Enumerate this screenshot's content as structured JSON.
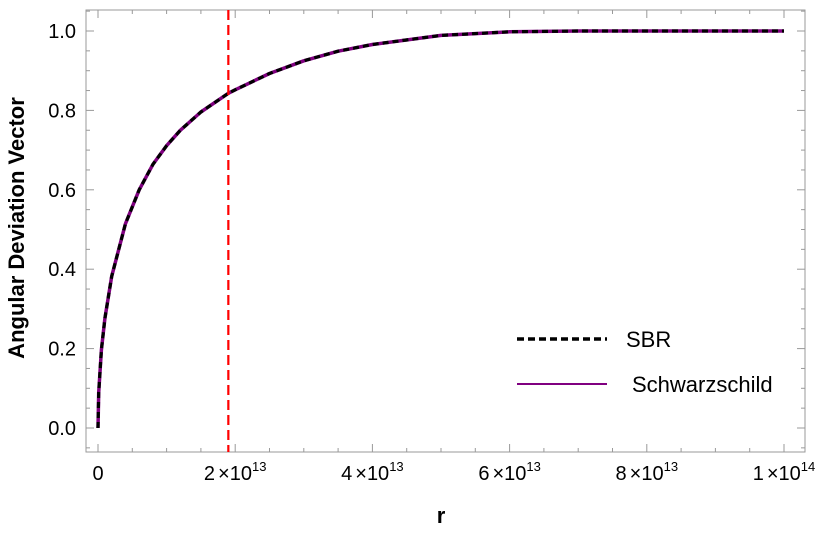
{
  "chart_data": {
    "type": "line",
    "xlabel": "r",
    "ylabel": "Angular Deviation Vector",
    "xlim": [
      0,
      100000000000000
    ],
    "ylim": [
      0,
      1.0
    ],
    "x_ticks": [
      {
        "value": 0,
        "label": "0",
        "mantissa": "",
        "times": "",
        "base": "",
        "exp": ""
      },
      {
        "value": 20000000000000,
        "label": "",
        "mantissa": "2",
        "times": "×",
        "base": "10",
        "exp": "13"
      },
      {
        "value": 40000000000000,
        "label": "",
        "mantissa": "4",
        "times": "×",
        "base": "10",
        "exp": "13"
      },
      {
        "value": 60000000000000,
        "label": "",
        "mantissa": "6",
        "times": "×",
        "base": "10",
        "exp": "13"
      },
      {
        "value": 80000000000000,
        "label": "",
        "mantissa": "8",
        "times": "×",
        "base": "10",
        "exp": "13"
      },
      {
        "value": 100000000000000,
        "label": "",
        "mantissa": "1",
        "times": "×",
        "base": "10",
        "exp": "14"
      }
    ],
    "y_ticks": [
      {
        "value": 0.0,
        "label": "0.0"
      },
      {
        "value": 0.2,
        "label": "0.2"
      },
      {
        "value": 0.4,
        "label": "0.4"
      },
      {
        "value": 0.6,
        "label": "0.6"
      },
      {
        "value": 0.8,
        "label": "0.8"
      },
      {
        "value": 1.0,
        "label": "1.0"
      }
    ],
    "x": [
      0,
      100000000000,
      500000000000,
      1000000000000,
      2000000000000,
      4000000000000,
      6000000000000,
      8000000000000,
      10000000000000,
      12000000000000,
      15000000000000,
      19000000000000,
      20000000000000,
      25000000000000,
      30000000000000,
      35000000000000,
      40000000000000,
      50000000000000,
      60000000000000,
      70000000000000,
      80000000000000,
      90000000000000,
      95000000000000,
      100000000000000
    ],
    "series": [
      {
        "name": "SBR",
        "values": [
          0.0,
          0.089,
          0.197,
          0.276,
          0.382,
          0.514,
          0.6,
          0.664,
          0.711,
          0.75,
          0.796,
          0.843,
          0.852,
          0.893,
          0.925,
          0.949,
          0.966,
          0.989,
          0.998,
          1.0,
          1.0,
          1.0,
          1.0,
          1.0
        ],
        "color": "#000000",
        "style": "dashed"
      },
      {
        "name": "Schwarzschild",
        "values": [
          0.0,
          0.089,
          0.197,
          0.276,
          0.382,
          0.514,
          0.6,
          0.664,
          0.711,
          0.75,
          0.796,
          0.843,
          0.852,
          0.893,
          0.925,
          0.949,
          0.966,
          0.989,
          0.998,
          1.0,
          1.0,
          1.0,
          1.0,
          1.0
        ],
        "color": "#800080",
        "style": "solid"
      }
    ],
    "vline": {
      "x": 19000000000000,
      "color": "#ff0000",
      "style": "dashed"
    },
    "legend_position": "bottom-right",
    "grid": false
  }
}
